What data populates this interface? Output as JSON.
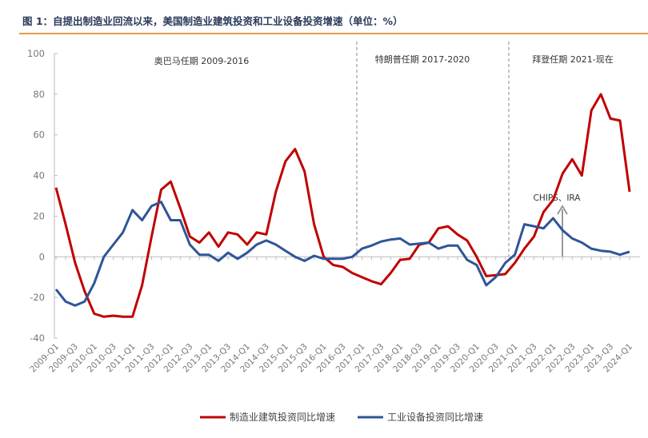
{
  "chart_data": {
    "type": "line",
    "title": "图 1：自提出制造业回流以来，美国制造业建筑投资和工业设备投资增速（单位：%）",
    "categories": [
      "2009-Q1",
      null,
      "2009-Q3",
      null,
      "2010-Q1",
      null,
      "2010-Q3",
      null,
      "2011-Q1",
      null,
      "2011-Q3",
      null,
      "2012-Q1",
      null,
      "2012-Q3",
      null,
      "2013-Q1",
      null,
      "2013-Q3",
      null,
      "2014-Q1",
      null,
      "2014-Q3",
      null,
      "2015-Q1",
      null,
      "2015-Q3",
      null,
      "2016-Q1",
      null,
      "2016-Q3",
      null,
      "2017-Q1",
      null,
      "2017-Q3",
      null,
      "2018-Q1",
      null,
      "2018-Q3",
      null,
      "2019-Q1",
      null,
      "2019-Q3",
      null,
      "2020-Q1",
      null,
      "2020-Q3",
      null,
      "2021-Q1",
      null,
      "2021-Q3",
      null,
      "2022-Q1",
      null,
      "2022-Q3",
      null,
      "2023-Q1",
      null,
      "2023-Q3",
      null,
      "2024-Q1"
    ],
    "series": [
      {
        "name": "制造业建筑投资同比增速",
        "color": "#c00000",
        "values": [
          34,
          16,
          -3,
          -17,
          -28,
          -29.5,
          -29,
          -29.5,
          -29.5,
          -14,
          10,
          33,
          37,
          24,
          10,
          7,
          12,
          5,
          12,
          11,
          6,
          12,
          11,
          32,
          47,
          53,
          42,
          16,
          0,
          -4,
          -5,
          -8,
          -10,
          -12,
          -13.5,
          -8,
          -1.5,
          -1,
          6,
          7,
          14,
          15,
          11,
          8,
          0,
          -9.5,
          -9,
          -8.5,
          -3,
          4,
          10,
          22,
          28,
          41,
          48,
          40,
          72,
          80,
          68,
          67,
          32
        ]
      },
      {
        "name": "工业设备投资同比增速",
        "color": "#2e5597",
        "values": [
          -16,
          -22,
          -24,
          -22,
          -13,
          0,
          6,
          12,
          23,
          18,
          25,
          27,
          18,
          18,
          6,
          1,
          1,
          -2,
          2,
          -1,
          2,
          6,
          8,
          6,
          3,
          0,
          -2,
          0.5,
          -1,
          -1,
          -1,
          0,
          4,
          5.5,
          7.5,
          8.5,
          9,
          6,
          6.5,
          7,
          4,
          5.5,
          5.5,
          -1.5,
          -4,
          -14,
          -10,
          -3,
          1,
          16,
          15,
          14,
          19,
          13,
          9,
          7,
          4,
          3,
          2.5,
          1,
          2.5
        ]
      }
    ],
    "annotations": [
      "奥巴马任期 2009-2016",
      "特朗普任期 2017-2020",
      "拜登任期 2021-现在",
      "CHIPS、IRA"
    ],
    "ylim": [
      -40,
      100
    ],
    "yticks": [
      -40,
      -20,
      0,
      20,
      40,
      60,
      80,
      100
    ]
  }
}
